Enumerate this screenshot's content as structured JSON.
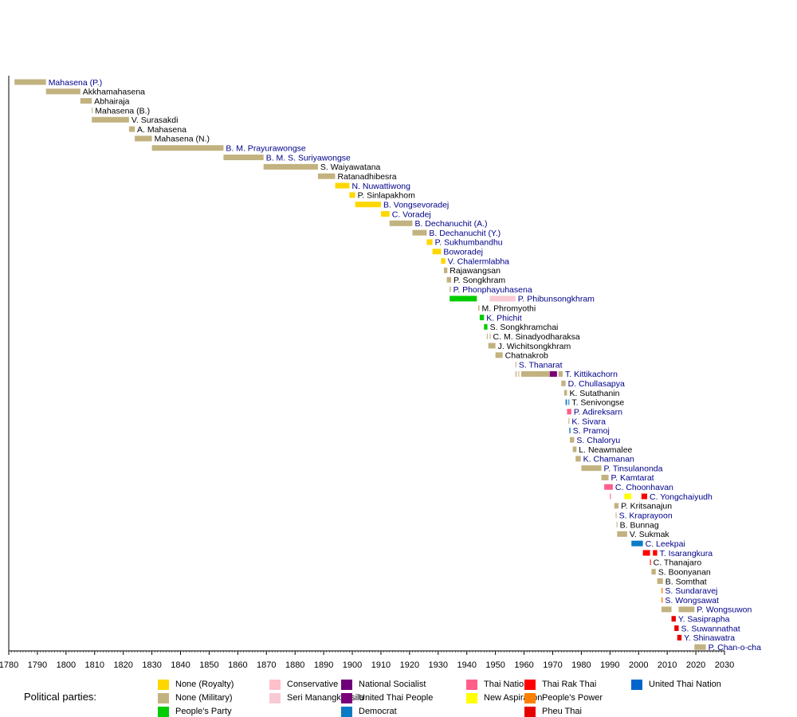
{
  "chart_data": {
    "type": "timeline",
    "title": "",
    "xlabel": "",
    "ylabel": "",
    "xlim": [
      1780,
      2030
    ],
    "x_ticks": [
      "1780",
      "1790",
      "1800",
      "1810",
      "1820",
      "1830",
      "1840",
      "1850",
      "1860",
      "1870",
      "1880",
      "1890",
      "1900",
      "1910",
      "1920",
      "1930",
      "1940",
      "1950",
      "1960",
      "1970",
      "1980",
      "1990",
      "2000",
      "2010",
      "2020",
      "2030"
    ],
    "colors": {
      "royalty": "#ffd700",
      "military": "#c2b280",
      "peoples_party": "#00cc00",
      "conservative": "#ffc0cb",
      "seri_manangkhasila": "#f8cad4",
      "democrat": "#0b7bc4",
      "national_socialist": "#6e007a",
      "united_thai_people": "#7a007a",
      "thai_nation": "#ff5e8a",
      "new_aspiration": "#ffff00",
      "thai_rak_thai": "#ff0000",
      "peoples_power": "#ff8000",
      "pheu_thai": "#e60000",
      "united_thai_nation": "#0066cc",
      "link_text": "#00008b",
      "plain_text": "#000000"
    },
    "rows": [
      {
        "label": "Mahasena (P.)",
        "link": true,
        "segments": [
          {
            "start": 1782,
            "end": 1793,
            "party": "military"
          }
        ]
      },
      {
        "label": "Akkhamahasena",
        "link": false,
        "segments": [
          {
            "start": 1793,
            "end": 1805,
            "party": "military"
          }
        ]
      },
      {
        "label": "Abhairaja",
        "link": false,
        "segments": [
          {
            "start": 1805,
            "end": 1809,
            "party": "military"
          }
        ]
      },
      {
        "label": "Mahasena (B.)",
        "link": false,
        "segments": [
          {
            "start": 1809,
            "end": 1809.3,
            "party": "military"
          }
        ]
      },
      {
        "label": "V. Surasakdi",
        "link": false,
        "segments": [
          {
            "start": 1809,
            "end": 1822,
            "party": "military"
          }
        ]
      },
      {
        "label": "A. Mahasena",
        "link": false,
        "segments": [
          {
            "start": 1822,
            "end": 1824,
            "party": "military"
          }
        ]
      },
      {
        "label": "Mahasena (N.)",
        "link": false,
        "segments": [
          {
            "start": 1824,
            "end": 1830,
            "party": "military"
          }
        ]
      },
      {
        "label": "B. M. Prayurawongse",
        "link": true,
        "segments": [
          {
            "start": 1830,
            "end": 1855,
            "party": "military"
          }
        ]
      },
      {
        "label": "B. M. S. Suriyawongse",
        "link": true,
        "segments": [
          {
            "start": 1855,
            "end": 1869,
            "party": "military"
          }
        ]
      },
      {
        "label": "S. Waiyawatana",
        "link": false,
        "segments": [
          {
            "start": 1869,
            "end": 1888,
            "party": "military"
          }
        ]
      },
      {
        "label": "Ratanadhibesra",
        "link": false,
        "segments": [
          {
            "start": 1888,
            "end": 1894,
            "party": "military"
          }
        ]
      },
      {
        "label": "N. Nuwattiwong",
        "link": true,
        "segments": [
          {
            "start": 1894,
            "end": 1899,
            "party": "royalty"
          }
        ]
      },
      {
        "label": "P. Sinlapakhom",
        "link": false,
        "segments": [
          {
            "start": 1899,
            "end": 1901,
            "party": "royalty"
          }
        ]
      },
      {
        "label": "B. Vongsevoradej",
        "link": true,
        "segments": [
          {
            "start": 1901,
            "end": 1910,
            "party": "royalty"
          }
        ]
      },
      {
        "label": "C. Voradej",
        "link": true,
        "segments": [
          {
            "start": 1910,
            "end": 1913,
            "party": "royalty"
          }
        ]
      },
      {
        "label": "B. Dechanuchit (A.)",
        "link": true,
        "segments": [
          {
            "start": 1913,
            "end": 1921,
            "party": "military"
          }
        ]
      },
      {
        "label": "B. Dechanuchit (Y.)",
        "link": true,
        "segments": [
          {
            "start": 1921,
            "end": 1926,
            "party": "military"
          }
        ]
      },
      {
        "label": "P. Sukhumbandhu",
        "link": true,
        "segments": [
          {
            "start": 1926,
            "end": 1928,
            "party": "royalty"
          }
        ]
      },
      {
        "label": "Boworadej",
        "link": true,
        "segments": [
          {
            "start": 1928,
            "end": 1931,
            "party": "royalty"
          }
        ]
      },
      {
        "label": "V. Chalermlabha",
        "link": true,
        "segments": [
          {
            "start": 1931,
            "end": 1932.5,
            "party": "royalty"
          }
        ]
      },
      {
        "label": "Rajawangsan",
        "link": false,
        "segments": [
          {
            "start": 1932,
            "end": 1933.2,
            "party": "military"
          }
        ]
      },
      {
        "label": "P. Songkhram",
        "link": false,
        "segments": [
          {
            "start": 1933,
            "end": 1934.5,
            "party": "military"
          }
        ]
      },
      {
        "label": "P. Phonphayuhasena",
        "link": true,
        "segments": [
          {
            "start": 1934,
            "end": 1934.4,
            "party": "military"
          }
        ]
      },
      {
        "label": "P. Phibunsongkhram",
        "link": true,
        "segments": [
          {
            "start": 1934,
            "end": 1943.5,
            "party": "peoples_party"
          },
          {
            "start": 1948,
            "end": 1957,
            "party": "seri_manangkhasila"
          }
        ]
      },
      {
        "label": "M. Phromyothi",
        "link": false,
        "segments": [
          {
            "start": 1944,
            "end": 1944.4,
            "party": "military"
          }
        ]
      },
      {
        "label": "K. Phichit",
        "link": true,
        "segments": [
          {
            "start": 1944.5,
            "end": 1946,
            "party": "peoples_party"
          }
        ]
      },
      {
        "label": "S. Songkhramchai",
        "link": false,
        "segments": [
          {
            "start": 1946,
            "end": 1947.2,
            "party": "peoples_party"
          }
        ]
      },
      {
        "label": "C. M. Sinadyodharaksa",
        "link": false,
        "segments": [
          {
            "start": 1947,
            "end": 1947.3,
            "party": "military"
          },
          {
            "start": 1948,
            "end": 1948.3,
            "party": "military"
          }
        ]
      },
      {
        "label": "J. Wichitsongkhram",
        "link": false,
        "segments": [
          {
            "start": 1947.5,
            "end": 1950,
            "party": "military"
          }
        ]
      },
      {
        "label": "Chatnakrob",
        "link": false,
        "segments": [
          {
            "start": 1950,
            "end": 1952.5,
            "party": "military"
          }
        ]
      },
      {
        "label": "S. Thanarat",
        "link": true,
        "segments": [
          {
            "start": 1957,
            "end": 1957.3,
            "party": "military"
          }
        ]
      },
      {
        "label": "T. Kittikachorn",
        "link": true,
        "segments": [
          {
            "start": 1957,
            "end": 1957.4,
            "party": "military"
          },
          {
            "start": 1958,
            "end": 1958.3,
            "party": "military"
          },
          {
            "start": 1959,
            "end": 1969,
            "party": "military"
          },
          {
            "start": 1969,
            "end": 1971.5,
            "party": "united_thai_people"
          },
          {
            "start": 1972,
            "end": 1973.5,
            "party": "military"
          }
        ]
      },
      {
        "label": "D. Chullasapya",
        "link": true,
        "segments": [
          {
            "start": 1973,
            "end": 1974.5,
            "party": "military"
          }
        ]
      },
      {
        "label": "K. Sutathanin",
        "link": false,
        "segments": [
          {
            "start": 1974,
            "end": 1975,
            "party": "military"
          }
        ]
      },
      {
        "label": "T. Senivongse",
        "link": false,
        "segments": [
          {
            "start": 1974.5,
            "end": 1975,
            "party": "democrat"
          },
          {
            "start": 1975.5,
            "end": 1975.8,
            "party": "democrat"
          }
        ]
      },
      {
        "label": "P. Adireksarn",
        "link": true,
        "segments": [
          {
            "start": 1975,
            "end": 1976.5,
            "party": "thai_nation"
          }
        ]
      },
      {
        "label": "K. Sivara",
        "link": true,
        "segments": [
          {
            "start": 1975.5,
            "end": 1975.8,
            "party": "military"
          }
        ]
      },
      {
        "label": "S. Pramoj",
        "link": true,
        "segments": [
          {
            "start": 1975.8,
            "end": 1976.2,
            "party": "democrat"
          }
        ]
      },
      {
        "label": "S. Chaloryu",
        "link": true,
        "segments": [
          {
            "start": 1976,
            "end": 1977.5,
            "party": "military"
          }
        ]
      },
      {
        "label": "L. Neawmalee",
        "link": false,
        "segments": [
          {
            "start": 1977,
            "end": 1978.3,
            "party": "military"
          }
        ]
      },
      {
        "label": "K. Chamanan",
        "link": true,
        "segments": [
          {
            "start": 1978,
            "end": 1979.8,
            "party": "military"
          }
        ]
      },
      {
        "label": "P. Tinsulanonda",
        "link": true,
        "segments": [
          {
            "start": 1980,
            "end": 1987,
            "party": "military"
          }
        ]
      },
      {
        "label": "P. Kamtarat",
        "link": true,
        "segments": [
          {
            "start": 1987,
            "end": 1989.5,
            "party": "military"
          }
        ]
      },
      {
        "label": "C. Choonhavan",
        "link": true,
        "segments": [
          {
            "start": 1988,
            "end": 1991,
            "party": "thai_nation"
          }
        ]
      },
      {
        "label": "C. Yongchaiyudh",
        "link": true,
        "segments": [
          {
            "start": 1990,
            "end": 1990.3,
            "party": "thai_nation"
          },
          {
            "start": 1995,
            "end": 1997.5,
            "party": "new_aspiration"
          },
          {
            "start": 2001,
            "end": 2003,
            "party": "thai_rak_thai"
          }
        ]
      },
      {
        "label": "P. Kritsanajun",
        "link": false,
        "segments": [
          {
            "start": 1991.5,
            "end": 1993,
            "party": "military"
          }
        ]
      },
      {
        "label": "S. Kraprayoon",
        "link": true,
        "segments": [
          {
            "start": 1992,
            "end": 1992.3,
            "party": "military"
          }
        ]
      },
      {
        "label": "B. Bunnag",
        "link": false,
        "segments": [
          {
            "start": 1992.3,
            "end": 1992.6,
            "party": "military"
          }
        ]
      },
      {
        "label": "V. Sukmak",
        "link": false,
        "segments": [
          {
            "start": 1992.5,
            "end": 1996,
            "party": "military"
          }
        ]
      },
      {
        "label": "C. Leekpai",
        "link": true,
        "segments": [
          {
            "start": 1997.5,
            "end": 2001.5,
            "party": "democrat"
          }
        ]
      },
      {
        "label": "T. Isarangkura",
        "link": true,
        "segments": [
          {
            "start": 2001.5,
            "end": 2004,
            "party": "thai_rak_thai"
          },
          {
            "start": 2005,
            "end": 2006.5,
            "party": "thai_rak_thai"
          }
        ]
      },
      {
        "label": "C. Thanajaro",
        "link": false,
        "segments": [
          {
            "start": 2004,
            "end": 2004.3,
            "party": "thai_rak_thai"
          }
        ]
      },
      {
        "label": "S. Boonyanan",
        "link": false,
        "segments": [
          {
            "start": 2004.5,
            "end": 2006,
            "party": "military"
          }
        ]
      },
      {
        "label": "B. Somthat",
        "link": false,
        "segments": [
          {
            "start": 2006.5,
            "end": 2008.5,
            "party": "military"
          }
        ]
      },
      {
        "label": "S. Sundaravej",
        "link": true,
        "segments": [
          {
            "start": 2008,
            "end": 2008.4,
            "party": "peoples_power"
          }
        ]
      },
      {
        "label": "S. Wongsawat",
        "link": true,
        "segments": [
          {
            "start": 2008,
            "end": 2008.4,
            "party": "peoples_power"
          }
        ]
      },
      {
        "label": "P. Wongsuwon",
        "link": true,
        "segments": [
          {
            "start": 2008,
            "end": 2011.5,
            "party": "military"
          },
          {
            "start": 2014,
            "end": 2019.5,
            "party": "military"
          }
        ]
      },
      {
        "label": "Y. Sasiprapha",
        "link": true,
        "segments": [
          {
            "start": 2011.5,
            "end": 2013,
            "party": "pheu_thai"
          }
        ]
      },
      {
        "label": "S. Suwannathat",
        "link": true,
        "segments": [
          {
            "start": 2012.5,
            "end": 2014,
            "party": "pheu_thai"
          }
        ]
      },
      {
        "label": "Y. Shinawatra",
        "link": true,
        "segments": [
          {
            "start": 2013.5,
            "end": 2015,
            "party": "pheu_thai"
          }
        ]
      },
      {
        "label": "P. Chan-o-cha",
        "link": true,
        "segments": [
          {
            "start": 2019.5,
            "end": 2023.5,
            "party": "military"
          }
        ]
      }
    ]
  },
  "legend": {
    "title": "Political parties:",
    "items": [
      {
        "key": "royalty",
        "label": "None (Royalty)"
      },
      {
        "key": "military",
        "label": "None (Military)"
      },
      {
        "key": "peoples_party",
        "label": "People's Party"
      },
      {
        "key": "conservative",
        "label": "Conservative"
      },
      {
        "key": "seri_manangkhasila",
        "label": "Seri Manangkhasila"
      },
      {
        "key": "national_socialist",
        "label": "National Socialist"
      },
      {
        "key": "united_thai_people",
        "label": "United Thai People"
      },
      {
        "key": "democrat",
        "label": "Democrat"
      },
      {
        "key": "thai_nation",
        "label": "Thai Nation"
      },
      {
        "key": "new_aspiration",
        "label": "New Aspiration"
      },
      {
        "key": "thai_rak_thai",
        "label": "Thai Rak Thai"
      },
      {
        "key": "peoples_power",
        "label": "People's Power"
      },
      {
        "key": "pheu_thai",
        "label": "Pheu Thai"
      },
      {
        "key": "united_thai_nation",
        "label": "United Thai Nation"
      }
    ]
  }
}
